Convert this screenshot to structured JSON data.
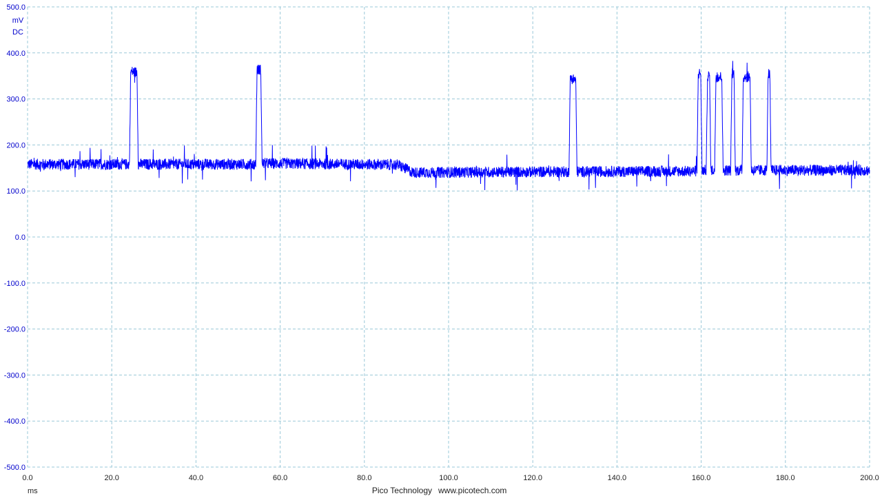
{
  "app": {
    "brand": "Pico Technology",
    "website": "www.picotech.com"
  },
  "chart_data": {
    "type": "line",
    "title": "",
    "xlabel": "ms",
    "ylabel": "mV",
    "ycoupling": "DC",
    "xlim": [
      0,
      200
    ],
    "ylim": [
      -500,
      500
    ],
    "grid": true,
    "xticks": [
      "0.0",
      "20.0",
      "40.0",
      "60.0",
      "80.0",
      "100.0",
      "120.0",
      "140.0",
      "160.0",
      "180.0",
      "200.0"
    ],
    "yticks": [
      "500.0",
      "400.0",
      "300.0",
      "200.0",
      "100.0",
      "0.0",
      "-100.0",
      "-200.0",
      "-300.0",
      "-400.0",
      "-500.0"
    ],
    "series": [
      {
        "color": "#0000ff",
        "x": [
          0,
          24.2,
          24.5,
          25.5,
          26.0,
          26.3,
          54.2,
          54.5,
          55.1,
          55.4,
          55.7,
          88.0,
          91.5,
          128.6,
          128.9,
          130.2,
          130.5,
          159.0,
          159.3,
          159.9,
          160.2,
          161.2,
          161.5,
          162.0,
          162.3,
          163.2,
          163.5,
          164.9,
          165.2,
          167.0,
          167.3,
          167.8,
          168.1,
          169.7,
          170.0,
          171.6,
          171.9,
          175.6,
          175.9,
          176.3,
          176.6,
          200
        ],
        "y": [
          158,
          158,
          360,
          358,
          358,
          158,
          158,
          362,
          365,
          362,
          160,
          157,
          140,
          142,
          345,
          342,
          142,
          143,
          355,
          355,
          145,
          145,
          350,
          350,
          145,
          145,
          348,
          348,
          145,
          145,
          355,
          355,
          145,
          145,
          348,
          348,
          145,
          145,
          355,
          355,
          145,
          145
        ],
        "noise_mV": 12
      }
    ]
  }
}
